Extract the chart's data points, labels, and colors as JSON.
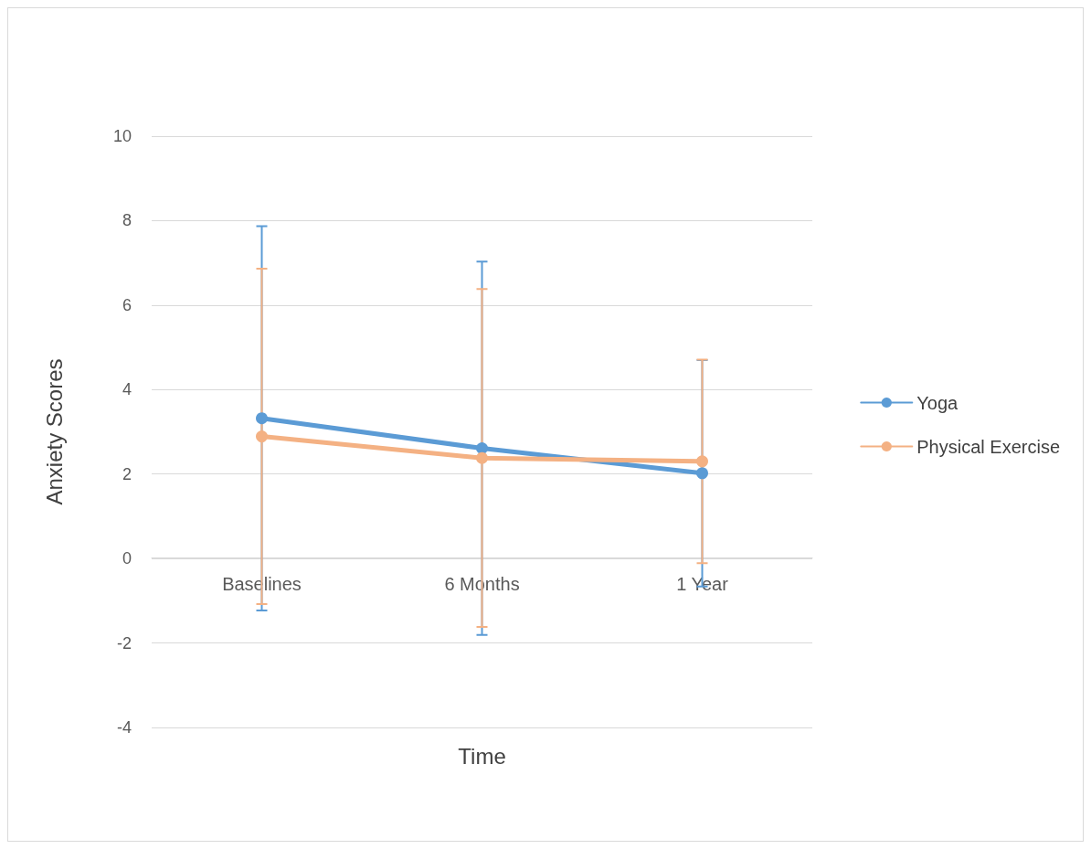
{
  "chart_data": {
    "type": "line",
    "xlabel": "Time",
    "ylabel": "Anxiety Scores",
    "categories": [
      "Baselines",
      "6 Months",
      "1 Year"
    ],
    "series": [
      {
        "name": "Yoga",
        "color": "#5b9bd5",
        "values": [
          3.32,
          2.61,
          2.02
        ],
        "errors": [
          4.55,
          4.42,
          2.68
        ]
      },
      {
        "name": "Physical Exercise",
        "color": "#f4b183",
        "values": [
          2.89,
          2.38,
          2.3
        ],
        "errors": [
          3.97,
          4.0,
          2.41
        ]
      }
    ],
    "ylim": [
      -4,
      10
    ],
    "yticks": [
      -4,
      -2,
      0,
      2,
      4,
      6,
      8,
      10
    ],
    "grid": "y",
    "legend": "right",
    "marker": "circle",
    "line_style": "solid"
  }
}
